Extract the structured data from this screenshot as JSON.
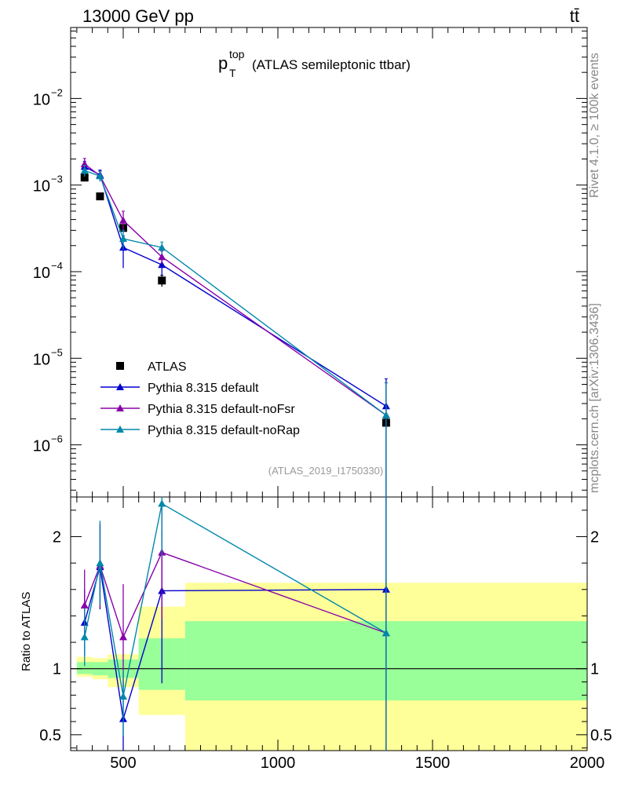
{
  "header": {
    "energy_label": "13000 GeV pp",
    "process_label": "tt̄"
  },
  "side": {
    "rivet_label": "Rivet 4.1.0, ≥ 100k events",
    "mcplots_label": "mcplots.cern.ch [arXiv:1306.3436]"
  },
  "chart_data": {
    "type": "line",
    "title_main": "p",
    "title_sub": "T",
    "title_sup": "top",
    "title_rest": "(ATLAS semileptonic ttbar)",
    "analysis_label": "(ATLAS_2019_I1750330)",
    "xlim": [
      330,
      2000
    ],
    "xticks": [
      500,
      1000,
      1500,
      2000
    ],
    "xtick_labels": [
      "500",
      "1000",
      "1500",
      "2000"
    ],
    "upper": {
      "yscale": "log",
      "ylim": [
        2.5e-07,
        0.066
      ],
      "yticks": [
        -6,
        -5,
        -4,
        -3,
        -2
      ],
      "ytick_labels": [
        "10",
        "10",
        "10",
        "10",
        "10"
      ],
      "ytick_exponents": [
        "−6",
        "−5",
        "−4",
        "−3",
        "−2"
      ]
    },
    "lower": {
      "ylabel": "Ratio to ATLAS",
      "ylim": [
        0.38,
        2.3
      ],
      "yticks": [
        0.5,
        1,
        2
      ],
      "ytick_labels": [
        "0.5",
        "1",
        "2"
      ],
      "bands": [
        {
          "x0": 350,
          "x1": 400,
          "yellow": [
            0.94,
            1.09
          ],
          "green": [
            0.96,
            1.05
          ]
        },
        {
          "x0": 400,
          "x1": 450,
          "yellow": [
            0.92,
            1.08
          ],
          "green": [
            0.95,
            1.05
          ]
        },
        {
          "x0": 450,
          "x1": 550,
          "yellow": [
            0.86,
            1.11
          ],
          "green": [
            0.93,
            1.07
          ]
        },
        {
          "x0": 550,
          "x1": 700,
          "yellow": [
            0.65,
            1.47
          ],
          "green": [
            0.84,
            1.23
          ]
        },
        {
          "x0": 700,
          "x1": 2000,
          "yellow": [
            0.38,
            1.65
          ],
          "green": [
            0.76,
            1.36
          ]
        }
      ]
    },
    "x": [
      375,
      425,
      500,
      625,
      1350
    ],
    "series": [
      {
        "name": "ATLAS",
        "color": "#000000",
        "marker": "square",
        "values": [
          0.00122,
          0.00074,
          0.00032,
          7.9e-05,
          1.8e-06
        ],
        "err_up": [
          8e-05,
          5e-05,
          3e-05,
          1.2e-05,
          2e-07
        ],
        "err_dn": [
          8e-05,
          5e-05,
          3e-05,
          1.2e-05,
          2e-07
        ]
      },
      {
        "name": "Pythia 8.315 default",
        "color": "#0000cc",
        "marker": "triangle",
        "values": [
          0.00163,
          0.00131,
          0.00019,
          0.00012,
          2.8e-06
        ],
        "err_up": [
          0.00025,
          0.00018,
          7e-05,
          3e-05,
          3e-06
        ],
        "err_dn": [
          0.00025,
          0.00018,
          8e-05,
          3e-05,
          2.7e-06
        ],
        "ratio": [
          1.35,
          1.77,
          0.62,
          1.59,
          1.6
        ],
        "ratio_err_up": [
          0.25,
          0.32,
          0.3,
          0.45,
          2.0
        ],
        "ratio_err_dn": [
          0.25,
          0.32,
          0.25,
          0.7,
          1.3
        ]
      },
      {
        "name": "Pythia 8.315 default-noFsr",
        "color": "#8800aa",
        "marker": "triangle",
        "values": [
          0.00175,
          0.00128,
          0.00039,
          0.000148,
          2.2e-06
        ],
        "err_up": [
          0.00028,
          0.00018,
          0.00011,
          2.5e-05,
          3e-06
        ],
        "err_dn": [
          0.00028,
          0.00018,
          0.0001,
          2.5e-05,
          2.1e-06
        ],
        "ratio": [
          1.48,
          1.78,
          1.24,
          1.88,
          1.27
        ],
        "ratio_err_up": [
          0.27,
          0.32,
          0.4,
          0.35,
          2.0
        ],
        "ratio_err_dn": [
          0.27,
          0.32,
          0.38,
          0.5,
          1.0
        ]
      },
      {
        "name": "Pythia 8.315 default-noRap",
        "color": "#0088aa",
        "marker": "triangle",
        "values": [
          0.00147,
          0.00127,
          0.00024,
          0.00019,
          2.2e-06
        ],
        "err_up": [
          0.00022,
          0.00017,
          6e-05,
          3e-05,
          3e-06
        ],
        "err_dn": [
          0.00022,
          0.00017,
          6e-05,
          3e-05,
          2.1e-06
        ],
        "ratio": [
          1.24,
          1.8,
          0.79,
          2.25,
          1.27
        ],
        "ratio_err_up": [
          0.22,
          0.32,
          0.2,
          0.1,
          2.0
        ],
        "ratio_err_dn": [
          0.22,
          0.32,
          0.3,
          0.4,
          1.0
        ]
      }
    ]
  }
}
